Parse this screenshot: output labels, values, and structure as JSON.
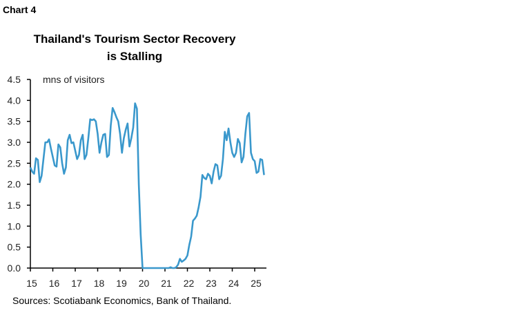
{
  "header": {
    "chart_label": "Chart 4"
  },
  "chart_data": {
    "type": "line",
    "title": "Thailand's Tourism Sector Recovery is Stalling",
    "ylabel": "mns of visitors",
    "xlabel": "",
    "ylim": [
      0,
      4.5
    ],
    "yticks": [
      "0.0",
      "0.5",
      "1.0",
      "1.5",
      "2.0",
      "2.5",
      "3.0",
      "3.5",
      "4.0",
      "4.5"
    ],
    "xticks": [
      "15",
      "16",
      "17",
      "18",
      "19",
      "20",
      "21",
      "22",
      "23",
      "24",
      "25"
    ],
    "xlim": [
      2015,
      2025.5
    ],
    "frequency": "monthly, starting Jan 2015",
    "color": "#3a98cc",
    "grid": false,
    "values": [
      2.4,
      2.3,
      2.25,
      2.62,
      2.58,
      2.05,
      2.2,
      2.6,
      3.0,
      3.0,
      3.07,
      2.85,
      2.65,
      2.45,
      2.42,
      2.95,
      2.88,
      2.5,
      2.25,
      2.4,
      3.05,
      3.18,
      2.98,
      3.0,
      2.8,
      2.6,
      2.7,
      3.05,
      3.18,
      2.6,
      2.7,
      3.1,
      3.55,
      3.53,
      3.55,
      3.5,
      3.2,
      2.75,
      3.0,
      3.18,
      3.2,
      2.65,
      2.7,
      3.4,
      3.82,
      3.72,
      3.6,
      3.5,
      3.2,
      2.75,
      3.1,
      3.3,
      3.45,
      2.9,
      3.1,
      3.35,
      3.93,
      3.8,
      2.0,
      0.8,
      0,
      0,
      0,
      0,
      0,
      0,
      0,
      0,
      0,
      0,
      0,
      0,
      0,
      0,
      0,
      0.02,
      0,
      0,
      0.02,
      0.08,
      0.22,
      0.15,
      0.18,
      0.22,
      0.3,
      0.55,
      0.75,
      1.13,
      1.18,
      1.25,
      1.45,
      1.7,
      2.22,
      2.15,
      2.12,
      2.25,
      2.2,
      2.02,
      2.3,
      2.48,
      2.45,
      2.12,
      2.2,
      2.6,
      3.25,
      3.05,
      3.33,
      3.0,
      2.75,
      2.65,
      2.75,
      3.08,
      2.98,
      2.52,
      2.65,
      3.2,
      3.62,
      3.7,
      2.75,
      2.6,
      2.55,
      2.27,
      2.3,
      2.6,
      2.58,
      2.22
    ]
  },
  "footer": {
    "source": "Sources: Scotiabank Economics, Bank of Thailand."
  }
}
